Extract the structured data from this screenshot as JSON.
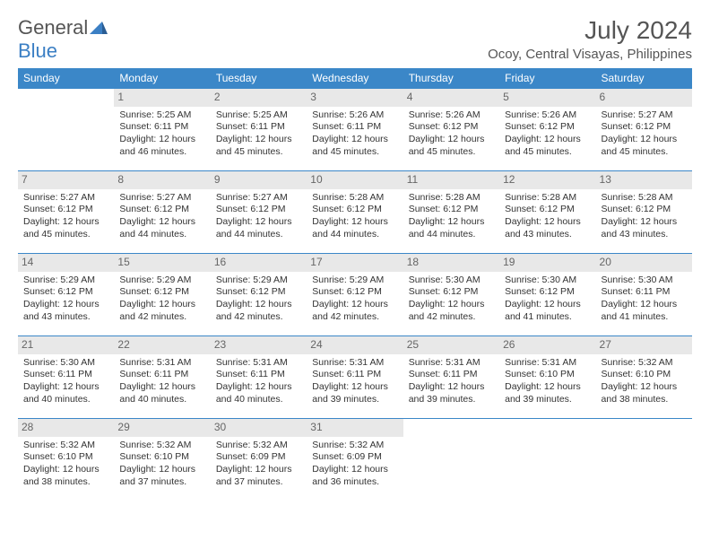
{
  "brand": {
    "part1": "General",
    "part2": "Blue"
  },
  "title": "July 2024",
  "location": "Ocoy, Central Visayas, Philippines",
  "colors": {
    "header_bg": "#3b87c8",
    "header_text": "#ffffff",
    "row_border": "#3b87c8",
    "daynum_bg": "#e8e8e8",
    "daynum_text": "#666666",
    "body_text": "#333333",
    "brand_gray": "#555555",
    "brand_blue": "#3b7fc4",
    "page_bg": "#ffffff"
  },
  "typography": {
    "title_fontsize": 28,
    "location_fontsize": 15,
    "header_fontsize": 12,
    "cell_fontsize": 10.5,
    "daynum_fontsize": 12
  },
  "weekdays": [
    "Sunday",
    "Monday",
    "Tuesday",
    "Wednesday",
    "Thursday",
    "Friday",
    "Saturday"
  ],
  "weeks": [
    [
      {
        "n": "",
        "lines": [
          "",
          "",
          "",
          ""
        ]
      },
      {
        "n": "1",
        "lines": [
          "Sunrise: 5:25 AM",
          "Sunset: 6:11 PM",
          "Daylight: 12 hours",
          "and 46 minutes."
        ]
      },
      {
        "n": "2",
        "lines": [
          "Sunrise: 5:25 AM",
          "Sunset: 6:11 PM",
          "Daylight: 12 hours",
          "and 45 minutes."
        ]
      },
      {
        "n": "3",
        "lines": [
          "Sunrise: 5:26 AM",
          "Sunset: 6:11 PM",
          "Daylight: 12 hours",
          "and 45 minutes."
        ]
      },
      {
        "n": "4",
        "lines": [
          "Sunrise: 5:26 AM",
          "Sunset: 6:12 PM",
          "Daylight: 12 hours",
          "and 45 minutes."
        ]
      },
      {
        "n": "5",
        "lines": [
          "Sunrise: 5:26 AM",
          "Sunset: 6:12 PM",
          "Daylight: 12 hours",
          "and 45 minutes."
        ]
      },
      {
        "n": "6",
        "lines": [
          "Sunrise: 5:27 AM",
          "Sunset: 6:12 PM",
          "Daylight: 12 hours",
          "and 45 minutes."
        ]
      }
    ],
    [
      {
        "n": "7",
        "lines": [
          "Sunrise: 5:27 AM",
          "Sunset: 6:12 PM",
          "Daylight: 12 hours",
          "and 45 minutes."
        ]
      },
      {
        "n": "8",
        "lines": [
          "Sunrise: 5:27 AM",
          "Sunset: 6:12 PM",
          "Daylight: 12 hours",
          "and 44 minutes."
        ]
      },
      {
        "n": "9",
        "lines": [
          "Sunrise: 5:27 AM",
          "Sunset: 6:12 PM",
          "Daylight: 12 hours",
          "and 44 minutes."
        ]
      },
      {
        "n": "10",
        "lines": [
          "Sunrise: 5:28 AM",
          "Sunset: 6:12 PM",
          "Daylight: 12 hours",
          "and 44 minutes."
        ]
      },
      {
        "n": "11",
        "lines": [
          "Sunrise: 5:28 AM",
          "Sunset: 6:12 PM",
          "Daylight: 12 hours",
          "and 44 minutes."
        ]
      },
      {
        "n": "12",
        "lines": [
          "Sunrise: 5:28 AM",
          "Sunset: 6:12 PM",
          "Daylight: 12 hours",
          "and 43 minutes."
        ]
      },
      {
        "n": "13",
        "lines": [
          "Sunrise: 5:28 AM",
          "Sunset: 6:12 PM",
          "Daylight: 12 hours",
          "and 43 minutes."
        ]
      }
    ],
    [
      {
        "n": "14",
        "lines": [
          "Sunrise: 5:29 AM",
          "Sunset: 6:12 PM",
          "Daylight: 12 hours",
          "and 43 minutes."
        ]
      },
      {
        "n": "15",
        "lines": [
          "Sunrise: 5:29 AM",
          "Sunset: 6:12 PM",
          "Daylight: 12 hours",
          "and 42 minutes."
        ]
      },
      {
        "n": "16",
        "lines": [
          "Sunrise: 5:29 AM",
          "Sunset: 6:12 PM",
          "Daylight: 12 hours",
          "and 42 minutes."
        ]
      },
      {
        "n": "17",
        "lines": [
          "Sunrise: 5:29 AM",
          "Sunset: 6:12 PM",
          "Daylight: 12 hours",
          "and 42 minutes."
        ]
      },
      {
        "n": "18",
        "lines": [
          "Sunrise: 5:30 AM",
          "Sunset: 6:12 PM",
          "Daylight: 12 hours",
          "and 42 minutes."
        ]
      },
      {
        "n": "19",
        "lines": [
          "Sunrise: 5:30 AM",
          "Sunset: 6:12 PM",
          "Daylight: 12 hours",
          "and 41 minutes."
        ]
      },
      {
        "n": "20",
        "lines": [
          "Sunrise: 5:30 AM",
          "Sunset: 6:11 PM",
          "Daylight: 12 hours",
          "and 41 minutes."
        ]
      }
    ],
    [
      {
        "n": "21",
        "lines": [
          "Sunrise: 5:30 AM",
          "Sunset: 6:11 PM",
          "Daylight: 12 hours",
          "and 40 minutes."
        ]
      },
      {
        "n": "22",
        "lines": [
          "Sunrise: 5:31 AM",
          "Sunset: 6:11 PM",
          "Daylight: 12 hours",
          "and 40 minutes."
        ]
      },
      {
        "n": "23",
        "lines": [
          "Sunrise: 5:31 AM",
          "Sunset: 6:11 PM",
          "Daylight: 12 hours",
          "and 40 minutes."
        ]
      },
      {
        "n": "24",
        "lines": [
          "Sunrise: 5:31 AM",
          "Sunset: 6:11 PM",
          "Daylight: 12 hours",
          "and 39 minutes."
        ]
      },
      {
        "n": "25",
        "lines": [
          "Sunrise: 5:31 AM",
          "Sunset: 6:11 PM",
          "Daylight: 12 hours",
          "and 39 minutes."
        ]
      },
      {
        "n": "26",
        "lines": [
          "Sunrise: 5:31 AM",
          "Sunset: 6:10 PM",
          "Daylight: 12 hours",
          "and 39 minutes."
        ]
      },
      {
        "n": "27",
        "lines": [
          "Sunrise: 5:32 AM",
          "Sunset: 6:10 PM",
          "Daylight: 12 hours",
          "and 38 minutes."
        ]
      }
    ],
    [
      {
        "n": "28",
        "lines": [
          "Sunrise: 5:32 AM",
          "Sunset: 6:10 PM",
          "Daylight: 12 hours",
          "and 38 minutes."
        ]
      },
      {
        "n": "29",
        "lines": [
          "Sunrise: 5:32 AM",
          "Sunset: 6:10 PM",
          "Daylight: 12 hours",
          "and 37 minutes."
        ]
      },
      {
        "n": "30",
        "lines": [
          "Sunrise: 5:32 AM",
          "Sunset: 6:09 PM",
          "Daylight: 12 hours",
          "and 37 minutes."
        ]
      },
      {
        "n": "31",
        "lines": [
          "Sunrise: 5:32 AM",
          "Sunset: 6:09 PM",
          "Daylight: 12 hours",
          "and 36 minutes."
        ]
      },
      {
        "n": "",
        "lines": [
          "",
          "",
          "",
          ""
        ]
      },
      {
        "n": "",
        "lines": [
          "",
          "",
          "",
          ""
        ]
      },
      {
        "n": "",
        "lines": [
          "",
          "",
          "",
          ""
        ]
      }
    ]
  ]
}
